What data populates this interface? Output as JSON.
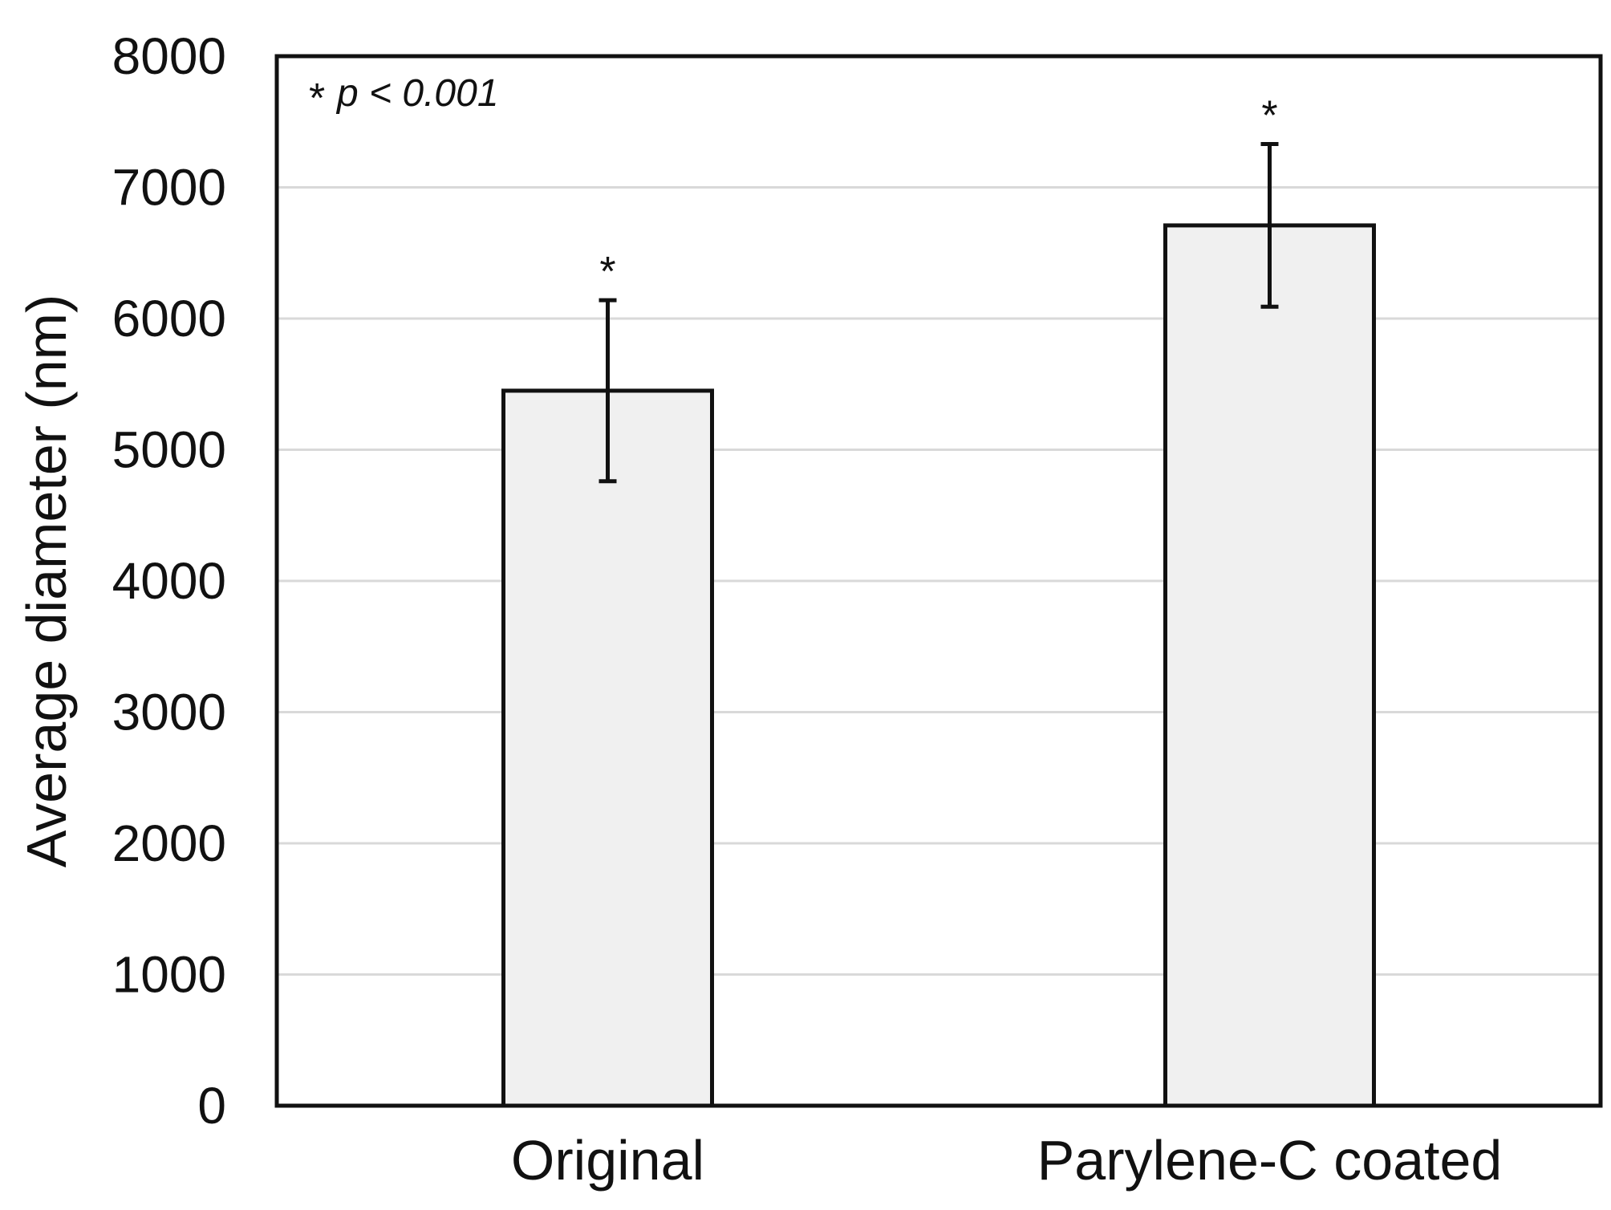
{
  "chart_data": {
    "type": "bar",
    "categories": [
      "Original",
      "Parylene-C coated"
    ],
    "values": [
      5450,
      6710
    ],
    "errors": [
      690,
      620
    ],
    "significance_markers": [
      "*",
      "*"
    ],
    "ylabel": "Average diameter (nm)",
    "xlabel": "",
    "ylim": [
      0,
      8000
    ],
    "yticks": [
      "0",
      "1000",
      "2000",
      "3000",
      "4000",
      "5000",
      "6000",
      "7000",
      "8000"
    ],
    "grid": true,
    "annotation": {
      "marker": "*",
      "text": "p < 0.001",
      "placement": "top-left"
    },
    "colors": {
      "bar_fill": "#f0f0f0",
      "bar_stroke": "#111111",
      "grid": "#d9d9d9",
      "axis": "#111111"
    }
  }
}
